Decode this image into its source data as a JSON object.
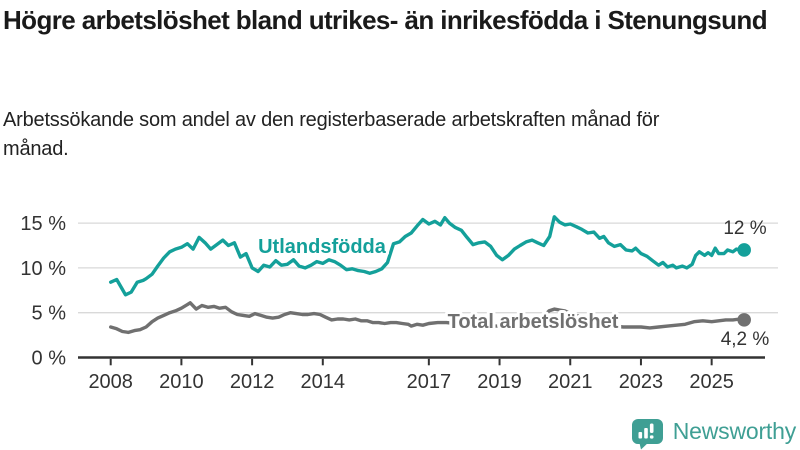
{
  "header": {
    "title": "Högre arbetslöshet bland utrikes- än inrikesfödda i Stenungsund",
    "subtitle": "Arbetssökande som andel av den registerbaserade arbetskraften månad för månad."
  },
  "branding": {
    "logo_text": "Newsworthy",
    "logo_icon": "speech-bubble-bar-chart-exclamation",
    "brand_color": "#3f9f94"
  },
  "colors": {
    "foreign_born_line": "#14a09a",
    "total_line": "#707070",
    "axis": "#333333",
    "grid": "#d9d9d9",
    "value_label": "#333333"
  },
  "chart_data": {
    "type": "line",
    "title": "Högre arbetslöshet bland utrikes- än inrikesfödda i Stenungsund",
    "subtitle": "Arbetssökande som andel av den registerbaserade arbetskraften månad för månad.",
    "xlabel": "",
    "ylabel": "",
    "grid": "horizontal",
    "legend_position": "inline-labels",
    "x_range": [
      2007.1,
      2026.4
    ],
    "y_range": [
      0,
      16.8
    ],
    "x_ticks": [
      {
        "year": 2008,
        "label": "2008"
      },
      {
        "year": 2010,
        "label": "2010"
      },
      {
        "year": 2012,
        "label": "2012"
      },
      {
        "year": 2014,
        "label": "2014"
      },
      {
        "year": 2017,
        "label": "2017"
      },
      {
        "year": 2019,
        "label": "2019"
      },
      {
        "year": 2021,
        "label": "2021"
      },
      {
        "year": 2023,
        "label": "2023"
      },
      {
        "year": 2025,
        "label": "2025"
      }
    ],
    "y_ticks": [
      {
        "value": 0,
        "label": "0 %"
      },
      {
        "value": 5,
        "label": "5 %"
      },
      {
        "value": 10,
        "label": "10 %"
      },
      {
        "value": 15,
        "label": "15 %"
      }
    ],
    "series": [
      {
        "name": "Utlandsfödda",
        "color": "#14a09a",
        "end_label": "12 %",
        "end_value": 12.0,
        "points": [
          [
            2008.0,
            8.4
          ],
          [
            2008.17,
            8.7
          ],
          [
            2008.33,
            7.6
          ],
          [
            2008.42,
            7.0
          ],
          [
            2008.58,
            7.3
          ],
          [
            2008.75,
            8.4
          ],
          [
            2008.92,
            8.6
          ],
          [
            2009.0,
            8.8
          ],
          [
            2009.17,
            9.3
          ],
          [
            2009.33,
            10.2
          ],
          [
            2009.5,
            11.1
          ],
          [
            2009.67,
            11.8
          ],
          [
            2009.83,
            12.1
          ],
          [
            2010.0,
            12.3
          ],
          [
            2010.17,
            12.7
          ],
          [
            2010.33,
            12.1
          ],
          [
            2010.5,
            13.4
          ],
          [
            2010.67,
            12.8
          ],
          [
            2010.83,
            12.1
          ],
          [
            2011.0,
            12.6
          ],
          [
            2011.17,
            13.1
          ],
          [
            2011.33,
            12.5
          ],
          [
            2011.5,
            12.8
          ],
          [
            2011.67,
            11.2
          ],
          [
            2011.83,
            11.6
          ],
          [
            2012.0,
            10.0
          ],
          [
            2012.17,
            9.6
          ],
          [
            2012.33,
            10.3
          ],
          [
            2012.5,
            10.1
          ],
          [
            2012.67,
            10.8
          ],
          [
            2012.83,
            10.3
          ],
          [
            2013.0,
            10.4
          ],
          [
            2013.17,
            10.9
          ],
          [
            2013.33,
            10.2
          ],
          [
            2013.5,
            10.0
          ],
          [
            2013.67,
            10.3
          ],
          [
            2013.83,
            10.7
          ],
          [
            2014.0,
            10.5
          ],
          [
            2014.17,
            10.9
          ],
          [
            2014.33,
            10.7
          ],
          [
            2014.5,
            10.3
          ],
          [
            2014.67,
            9.8
          ],
          [
            2014.83,
            9.9
          ],
          [
            2015.0,
            9.7
          ],
          [
            2015.17,
            9.6
          ],
          [
            2015.33,
            9.4
          ],
          [
            2015.5,
            9.6
          ],
          [
            2015.67,
            9.9
          ],
          [
            2015.83,
            10.6
          ],
          [
            2016.0,
            12.7
          ],
          [
            2016.17,
            12.9
          ],
          [
            2016.33,
            13.5
          ],
          [
            2016.5,
            13.9
          ],
          [
            2016.67,
            14.7
          ],
          [
            2016.83,
            15.4
          ],
          [
            2017.0,
            14.9
          ],
          [
            2017.17,
            15.2
          ],
          [
            2017.33,
            14.8
          ],
          [
            2017.45,
            15.6
          ],
          [
            2017.58,
            15.0
          ],
          [
            2017.75,
            14.5
          ],
          [
            2017.92,
            14.2
          ],
          [
            2018.08,
            13.4
          ],
          [
            2018.25,
            12.6
          ],
          [
            2018.42,
            12.8
          ],
          [
            2018.58,
            12.9
          ],
          [
            2018.75,
            12.4
          ],
          [
            2018.92,
            11.4
          ],
          [
            2019.08,
            10.9
          ],
          [
            2019.25,
            11.4
          ],
          [
            2019.42,
            12.1
          ],
          [
            2019.58,
            12.5
          ],
          [
            2019.75,
            12.9
          ],
          [
            2019.92,
            13.1
          ],
          [
            2020.08,
            12.8
          ],
          [
            2020.25,
            12.5
          ],
          [
            2020.42,
            13.5
          ],
          [
            2020.55,
            15.7
          ],
          [
            2020.7,
            15.1
          ],
          [
            2020.85,
            14.8
          ],
          [
            2021.0,
            14.9
          ],
          [
            2021.17,
            14.6
          ],
          [
            2021.33,
            14.3
          ],
          [
            2021.5,
            13.9
          ],
          [
            2021.67,
            14.0
          ],
          [
            2021.83,
            13.3
          ],
          [
            2021.95,
            13.5
          ],
          [
            2022.08,
            12.8
          ],
          [
            2022.25,
            12.4
          ],
          [
            2022.42,
            12.6
          ],
          [
            2022.58,
            12.0
          ],
          [
            2022.75,
            11.9
          ],
          [
            2022.85,
            12.2
          ],
          [
            2023.0,
            11.6
          ],
          [
            2023.17,
            11.3
          ],
          [
            2023.33,
            10.8
          ],
          [
            2023.5,
            10.3
          ],
          [
            2023.62,
            10.6
          ],
          [
            2023.75,
            10.1
          ],
          [
            2023.9,
            10.3
          ],
          [
            2024.0,
            10.0
          ],
          [
            2024.17,
            10.2
          ],
          [
            2024.3,
            10.0
          ],
          [
            2024.45,
            10.4
          ],
          [
            2024.55,
            11.4
          ],
          [
            2024.65,
            11.8
          ],
          [
            2024.8,
            11.4
          ],
          [
            2024.9,
            11.7
          ],
          [
            2025.0,
            11.4
          ],
          [
            2025.1,
            12.2
          ],
          [
            2025.2,
            11.6
          ],
          [
            2025.35,
            11.6
          ],
          [
            2025.45,
            12.0
          ],
          [
            2025.6,
            11.8
          ],
          [
            2025.7,
            12.1
          ],
          [
            2025.85,
            11.9
          ],
          [
            2025.92,
            12.0
          ]
        ]
      },
      {
        "name": "Total arbetslöshet",
        "color": "#707070",
        "end_label": "4,2 %",
        "end_value": 4.2,
        "points": [
          [
            2008.0,
            3.4
          ],
          [
            2008.17,
            3.2
          ],
          [
            2008.33,
            2.9
          ],
          [
            2008.5,
            2.8
          ],
          [
            2008.67,
            3.0
          ],
          [
            2008.83,
            3.1
          ],
          [
            2009.0,
            3.4
          ],
          [
            2009.17,
            4.0
          ],
          [
            2009.33,
            4.4
          ],
          [
            2009.5,
            4.7
          ],
          [
            2009.67,
            5.0
          ],
          [
            2009.83,
            5.2
          ],
          [
            2010.0,
            5.5
          ],
          [
            2010.17,
            5.9
          ],
          [
            2010.25,
            6.1
          ],
          [
            2010.42,
            5.4
          ],
          [
            2010.58,
            5.8
          ],
          [
            2010.75,
            5.6
          ],
          [
            2010.92,
            5.7
          ],
          [
            2011.08,
            5.5
          ],
          [
            2011.25,
            5.6
          ],
          [
            2011.42,
            5.1
          ],
          [
            2011.58,
            4.8
          ],
          [
            2011.75,
            4.7
          ],
          [
            2011.92,
            4.6
          ],
          [
            2012.08,
            4.9
          ],
          [
            2012.25,
            4.7
          ],
          [
            2012.42,
            4.5
          ],
          [
            2012.58,
            4.4
          ],
          [
            2012.75,
            4.5
          ],
          [
            2012.92,
            4.8
          ],
          [
            2013.08,
            5.0
          ],
          [
            2013.25,
            4.9
          ],
          [
            2013.42,
            4.8
          ],
          [
            2013.58,
            4.8
          ],
          [
            2013.75,
            4.9
          ],
          [
            2013.92,
            4.8
          ],
          [
            2014.08,
            4.5
          ],
          [
            2014.25,
            4.2
          ],
          [
            2014.42,
            4.3
          ],
          [
            2014.58,
            4.3
          ],
          [
            2014.75,
            4.2
          ],
          [
            2014.92,
            4.3
          ],
          [
            2015.08,
            4.1
          ],
          [
            2015.25,
            4.1
          ],
          [
            2015.42,
            3.9
          ],
          [
            2015.58,
            3.9
          ],
          [
            2015.75,
            3.8
          ],
          [
            2015.92,
            3.9
          ],
          [
            2016.08,
            3.9
          ],
          [
            2016.25,
            3.8
          ],
          [
            2016.42,
            3.7
          ],
          [
            2016.5,
            3.5
          ],
          [
            2016.67,
            3.7
          ],
          [
            2016.83,
            3.6
          ],
          [
            2017.0,
            3.8
          ],
          [
            2017.25,
            3.9
          ],
          [
            2017.5,
            3.9
          ],
          [
            2017.75,
            3.8
          ],
          [
            2018.0,
            3.7
          ],
          [
            2018.25,
            3.6
          ],
          [
            2018.5,
            3.6
          ],
          [
            2018.75,
            3.5
          ],
          [
            2019.0,
            3.5
          ],
          [
            2019.25,
            3.6
          ],
          [
            2019.5,
            3.7
          ],
          [
            2019.75,
            3.8
          ],
          [
            2020.0,
            3.9
          ],
          [
            2020.2,
            4.4
          ],
          [
            2020.4,
            5.2
          ],
          [
            2020.55,
            5.4
          ],
          [
            2020.7,
            5.3
          ],
          [
            2020.85,
            5.2
          ],
          [
            2021.0,
            4.9
          ],
          [
            2021.25,
            4.6
          ],
          [
            2021.5,
            4.3
          ],
          [
            2021.75,
            4.0
          ],
          [
            2022.0,
            3.6
          ],
          [
            2022.25,
            3.5
          ],
          [
            2022.5,
            3.4
          ],
          [
            2022.75,
            3.4
          ],
          [
            2023.0,
            3.4
          ],
          [
            2023.25,
            3.3
          ],
          [
            2023.5,
            3.4
          ],
          [
            2023.75,
            3.5
          ],
          [
            2024.0,
            3.6
          ],
          [
            2024.25,
            3.7
          ],
          [
            2024.5,
            4.0
          ],
          [
            2024.75,
            4.1
          ],
          [
            2025.0,
            4.0
          ],
          [
            2025.2,
            4.1
          ],
          [
            2025.4,
            4.2
          ],
          [
            2025.6,
            4.2
          ],
          [
            2025.8,
            4.3
          ],
          [
            2025.92,
            4.2
          ]
        ]
      }
    ]
  }
}
